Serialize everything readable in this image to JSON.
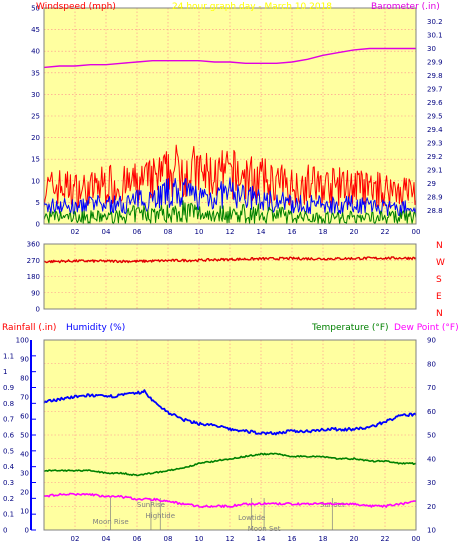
{
  "header": {
    "windspeed_label": "Windspeed (mph)",
    "title": "24 hour graph day - March 10 2018",
    "barometer_label": "Barometer (.in)"
  },
  "lower_header": {
    "rainfall_label": "Rainfall (.in)",
    "humidity_label": "Humidity (%)",
    "temperature_label": "Temperature (°F)",
    "dewpoint_label": "Dew Point (°F)"
  },
  "colors": {
    "background": "#ffffa0",
    "grid": "#ff8c8c",
    "frame": "#808080",
    "wind_high": "#ff0000",
    "wind_avg": "#0000ff",
    "wind_low": "#008000",
    "barometer": "#e000e0",
    "direction": "#e00000",
    "humidity": "#0000ff",
    "temperature": "#008000",
    "dewpoint": "#ff00ff",
    "title": "#ffff00",
    "rainfall_label": "#ff0000",
    "annotation": "#808080"
  },
  "x_ticks": [
    "02",
    "04",
    "06",
    "08",
    "10",
    "12",
    "14",
    "16",
    "18",
    "20",
    "22",
    "00"
  ],
  "chart_data": [
    {
      "type": "line",
      "panel": "wind-barometer",
      "title": "24 hour graph day - March 10 2018",
      "xlabel": "",
      "xlim": [
        0,
        24
      ],
      "grid": true,
      "y_left": {
        "label": "Windspeed (mph)",
        "ylim": [
          0,
          50
        ],
        "ticks": [
          "0",
          "5",
          "10",
          "15",
          "20",
          "25",
          "30",
          "35",
          "40",
          "45",
          "50"
        ]
      },
      "y_right": {
        "label": "Barometer (.in)",
        "ylim": [
          28.7,
          30.3
        ],
        "ticks": [
          "28.8",
          "28.9",
          "29",
          "29.1",
          "29.2",
          "29.3",
          "29.4",
          "29.5",
          "29.6",
          "29.7",
          "29.8",
          "29.9",
          "30",
          "30.1",
          "30.2"
        ]
      },
      "series": [
        {
          "name": "Windspeed (mph)",
          "axis": "left",
          "style": "wind",
          "x": [
            0,
            1,
            2,
            3,
            4,
            5,
            6,
            7,
            8,
            9,
            10,
            11,
            12,
            13,
            14,
            15,
            16,
            17,
            18,
            19,
            20,
            21,
            22,
            23,
            24
          ],
          "high": [
            11,
            12,
            11,
            11,
            13,
            12,
            13,
            14,
            16,
            18,
            16,
            15,
            16,
            15,
            14,
            13,
            12,
            13,
            12,
            12,
            12,
            11,
            11,
            11,
            10
          ],
          "avg": [
            4,
            5,
            4,
            5,
            5,
            5,
            6,
            7,
            8,
            8,
            7,
            7,
            8,
            7,
            6,
            6,
            5,
            5,
            5,
            5,
            5,
            5,
            4,
            4,
            4
          ],
          "low": [
            2,
            2,
            2,
            2,
            2,
            2,
            3,
            3,
            3,
            4,
            3,
            3,
            3,
            3,
            3,
            3,
            2,
            2,
            2,
            2,
            2,
            2,
            2,
            2,
            2
          ]
        },
        {
          "name": "Barometer (.in)",
          "axis": "right",
          "x": [
            0,
            1,
            2,
            3,
            4,
            5,
            6,
            7,
            8,
            9,
            10,
            11,
            12,
            13,
            14,
            15,
            16,
            17,
            18,
            19,
            20,
            21,
            22,
            23,
            24
          ],
          "values": [
            29.86,
            29.87,
            29.87,
            29.88,
            29.88,
            29.89,
            29.9,
            29.91,
            29.91,
            29.91,
            29.91,
            29.9,
            29.9,
            29.89,
            29.89,
            29.89,
            29.9,
            29.92,
            29.95,
            29.97,
            29.99,
            30.0,
            30.0,
            30.0,
            30.0
          ]
        }
      ]
    },
    {
      "type": "line",
      "panel": "wind-direction",
      "xlim": [
        0,
        24
      ],
      "grid": true,
      "y_left": {
        "ylim": [
          0,
          360
        ],
        "ticks": [
          "0",
          "90",
          "180",
          "270",
          "360"
        ]
      },
      "y_right": {
        "ticks": [
          "N",
          "W",
          "S",
          "E",
          "N"
        ]
      },
      "series": [
        {
          "name": "",
          "x": [
            0,
            2,
            4,
            6,
            8,
            10,
            12,
            14,
            16,
            18,
            20,
            22,
            24
          ],
          "values": [
            262,
            266,
            265,
            264,
            268,
            270,
            275,
            278,
            280,
            278,
            280,
            282,
            282
          ]
        }
      ]
    },
    {
      "type": "line",
      "panel": "humidity-temperature",
      "xlim": [
        0,
        24
      ],
      "grid": true,
      "y_left_outer": {
        "label": "Rainfall (.in)",
        "ylim": [
          0,
          1.2
        ],
        "ticks": [
          "0",
          "0.1",
          "0.2",
          "0.3",
          "0.4",
          "0.5",
          "0.6",
          "0.7",
          "0.8",
          "0.9",
          "1",
          "1.1"
        ]
      },
      "y_left_inner": {
        "label": "Humidity (%)",
        "ylim": [
          0,
          100
        ],
        "ticks": [
          "0",
          "10",
          "20",
          "30",
          "40",
          "50",
          "60",
          "70",
          "80",
          "90",
          "100"
        ]
      },
      "y_right": {
        "label": "Temperature (°F)",
        "ylim": [
          10,
          90
        ],
        "ticks": [
          "10",
          "20",
          "30",
          "40",
          "50",
          "60",
          "70",
          "80",
          "90"
        ]
      },
      "annotations": [
        {
          "label": "Moon Rise",
          "x": 4.3
        },
        {
          "label": "SunRise",
          "x": 6.9
        },
        {
          "label": "Hightide",
          "x": 7.5
        },
        {
          "label": "Lowtide",
          "x": 13.4
        },
        {
          "label": "Moon Set",
          "x": 14.2
        },
        {
          "label": "SunSet",
          "x": 18.6
        }
      ],
      "series": [
        {
          "name": "Humidity (%)",
          "axis": "humidity",
          "x": [
            0,
            1,
            2,
            3,
            4,
            5,
            6,
            6.5,
            7,
            8,
            9,
            10,
            11,
            12,
            13,
            14,
            15,
            16,
            17,
            18,
            19,
            20,
            21,
            22,
            23,
            24
          ],
          "values": [
            67,
            69,
            70,
            71,
            70,
            71,
            72,
            73,
            68,
            62,
            58,
            56,
            55,
            53,
            52,
            51,
            51,
            52,
            52,
            53,
            53,
            53,
            54,
            57,
            60,
            61
          ]
        },
        {
          "name": "Temperature (°F)",
          "axis": "right",
          "x": [
            0,
            1,
            2,
            3,
            4,
            5,
            6,
            7,
            8,
            9,
            10,
            11,
            12,
            13,
            14,
            15,
            16,
            17,
            18,
            19,
            20,
            21,
            22,
            23,
            24
          ],
          "values": [
            35,
            35,
            35,
            35,
            34,
            34,
            33,
            34,
            35,
            36,
            38,
            39,
            40,
            41,
            42,
            42,
            41,
            41,
            41,
            40,
            40,
            39,
            39,
            38,
            38
          ]
        },
        {
          "name": "Dew Point (°F)",
          "axis": "right",
          "x": [
            0,
            1,
            2,
            3,
            4,
            5,
            6,
            7,
            8,
            9,
            10,
            11,
            12,
            13,
            14,
            15,
            16,
            17,
            18,
            19,
            20,
            21,
            22,
            23,
            24
          ],
          "values": [
            24,
            25,
            25,
            25,
            24,
            24,
            23,
            23,
            22,
            21,
            20,
            20,
            20,
            21,
            21,
            21,
            21,
            21,
            21,
            21,
            21,
            20,
            20,
            21,
            22
          ]
        }
      ]
    }
  ]
}
